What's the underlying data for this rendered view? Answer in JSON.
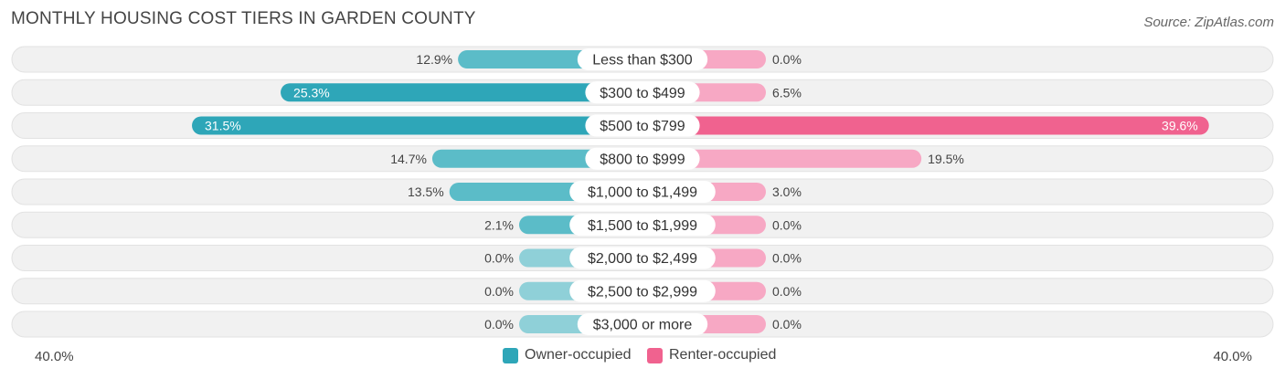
{
  "title": "MONTHLY HOUSING COST TIERS IN GARDEN COUNTY",
  "source": "Source: ZipAtlas.com",
  "colors": {
    "owner": "#5bbcc8",
    "owner_strong": "#2ea6b8",
    "renter": "#f7a8c4",
    "renter_strong": "#f0628f",
    "row_bg": "#f1f1f1"
  },
  "chart_data": {
    "type": "bar",
    "orientation": "diverging-horizontal",
    "title": "MONTHLY HOUSING COST TIERS IN GARDEN COUNTY",
    "axis_min_label": "40.0%",
    "axis_max_label": "40.0%",
    "xlim": [
      -40,
      40
    ],
    "categories": [
      "Less than $300",
      "$300 to $499",
      "$500 to $799",
      "$800 to $999",
      "$1,000 to $1,499",
      "$1,500 to $1,999",
      "$2,000 to $2,499",
      "$2,500 to $2,999",
      "$3,000 or more"
    ],
    "series": [
      {
        "name": "Owner-occupied",
        "values": [
          12.9,
          25.3,
          31.5,
          14.7,
          13.5,
          2.1,
          0.0,
          0.0,
          0.0
        ],
        "labels": [
          "12.9%",
          "25.3%",
          "31.5%",
          "14.7%",
          "13.5%",
          "2.1%",
          "0.0%",
          "0.0%",
          "0.0%"
        ]
      },
      {
        "name": "Renter-occupied",
        "values": [
          0.0,
          6.5,
          39.6,
          19.5,
          3.0,
          0.0,
          0.0,
          0.0,
          0.0
        ],
        "labels": [
          "0.0%",
          "6.5%",
          "39.6%",
          "19.5%",
          "3.0%",
          "0.0%",
          "0.0%",
          "0.0%",
          "0.0%"
        ]
      }
    ],
    "legend": [
      "Owner-occupied",
      "Renter-occupied"
    ]
  }
}
